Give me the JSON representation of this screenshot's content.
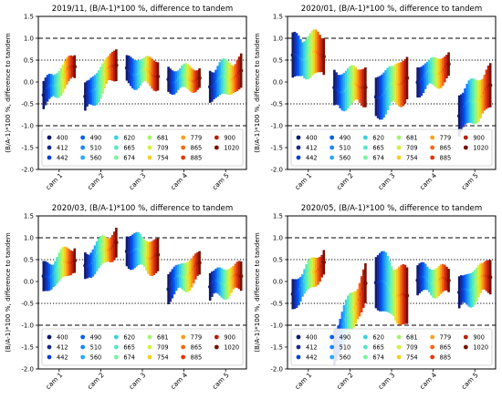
{
  "chart_data": [
    {
      "type": "errorbar",
      "title": "2019/11, (B/A-1)*100 %, difference to tandem",
      "xlabel": "",
      "ylabel": "(B/A-1)*100 %, difference to tandem",
      "ylim": [
        -2.0,
        1.5
      ],
      "yticks": [
        "-2.0",
        "-1.5",
        "-1.0",
        "-0.5",
        "0.0",
        "0.5",
        "1.0",
        "1.5"
      ],
      "categories": [
        "cam 1",
        "cam 2",
        "cam 3",
        "cam 4",
        "cam 5"
      ],
      "reference_lines": {
        "dashed": [
          1.0,
          -1.0
        ],
        "dotted": [
          0.5,
          -0.5
        ]
      },
      "groups": [
        {
          "start": -0.3,
          "end": 0.35,
          "sd": 0.28
        },
        {
          "start": -0.4,
          "end": 0.45,
          "sd": 0.32
        },
        {
          "start": 0.25,
          "end": 0.2,
          "sd": 0.3
        },
        {
          "start": 0.05,
          "end": 0.1,
          "sd": 0.25
        },
        {
          "start": -0.05,
          "end": 0.2,
          "sd": 0.35
        }
      ]
    },
    {
      "type": "errorbar",
      "title": "2020/01, (B/A-1)*100 %, difference to tandem",
      "xlabel": "",
      "ylabel": "(B/A-1)*100 %, difference to tandem",
      "ylim": [
        -2.0,
        1.5
      ],
      "yticks": [
        "-2.0",
        "-1.5",
        "-1.0",
        "-0.5",
        "0.0",
        "0.5",
        "1.0",
        "1.5"
      ],
      "categories": [
        "cam 1",
        "cam 2",
        "cam 3",
        "cam 4",
        "cam 5"
      ],
      "reference_lines": {
        "dashed": [
          1.0,
          -1.0
        ],
        "dotted": [
          0.5,
          -0.5
        ]
      },
      "groups": [
        {
          "start": 0.55,
          "end": 0.65,
          "sd": 0.45
        },
        {
          "start": -0.2,
          "end": -0.05,
          "sd": 0.4
        },
        {
          "start": -0.35,
          "end": 0.1,
          "sd": 0.45
        },
        {
          "start": 0.05,
          "end": 0.35,
          "sd": 0.3
        },
        {
          "start": -0.7,
          "end": -0.15,
          "sd": 0.45
        }
      ]
    },
    {
      "type": "errorbar",
      "title": "2020/03, (B/A-1)*100 %, difference to tandem",
      "xlabel": "",
      "ylabel": "(B/A-1)*100 %, difference to tandem",
      "ylim": [
        -2.0,
        1.5
      ],
      "yticks": [
        "-2.0",
        "-1.5",
        "-1.0",
        "-0.5",
        "0.0",
        "0.5",
        "1.0",
        "1.5"
      ],
      "categories": [
        "cam 1",
        "cam 2",
        "cam 3",
        "cam 4",
        "cam 5"
      ],
      "reference_lines": {
        "dashed": [
          1.0,
          -1.0
        ],
        "dotted": [
          0.5,
          -0.5
        ]
      },
      "groups": [
        {
          "start": 0.05,
          "end": 0.55,
          "sd": 0.3
        },
        {
          "start": 0.35,
          "end": 0.9,
          "sd": 0.3
        },
        {
          "start": 0.75,
          "end": 0.55,
          "sd": 0.35
        },
        {
          "start": -0.1,
          "end": 0.35,
          "sd": 0.3
        },
        {
          "start": -0.1,
          "end": 0.1,
          "sd": 0.3
        }
      ]
    },
    {
      "type": "errorbar",
      "title": "2020/05, (B/A-1)*100 %, difference to tandem",
      "xlabel": "",
      "ylabel": "(B/A-1)*100 %, difference to tandem",
      "ylim": [
        -2.0,
        1.5
      ],
      "yticks": [
        "-2.0",
        "-1.5",
        "-1.0",
        "-0.5",
        "0.0",
        "0.5",
        "1.0",
        "1.5"
      ],
      "categories": [
        "cam 1",
        "cam 2",
        "cam 3",
        "cam 4",
        "cam 5"
      ],
      "reference_lines": {
        "dashed": [
          1.0,
          -1.0
        ],
        "dotted": [
          0.5,
          -0.5
        ]
      },
      "groups": [
        {
          "start": -0.3,
          "end": 0.45,
          "sd": 0.3
        },
        {
          "start": -1.45,
          "end": -0.1,
          "sd": 0.4
        },
        {
          "start": 0.05,
          "end": -0.4,
          "sd": 0.6
        },
        {
          "start": 0.05,
          "end": 0.0,
          "sd": 0.3
        },
        {
          "start": -0.3,
          "end": 0.15,
          "sd": 0.35
        }
      ]
    }
  ],
  "legend": {
    "placement": "lower inside",
    "entries": [
      "400",
      "412",
      "442",
      "490",
      "510",
      "560",
      "620",
      "665",
      "674",
      "681",
      "709",
      "754",
      "779",
      "865",
      "885",
      "900",
      "1020"
    ],
    "colors": [
      "#0d1a6b",
      "#1a2a8f",
      "#0a3fd8",
      "#005ef5",
      "#1a86ff",
      "#27aaf8",
      "#3bd0e0",
      "#52e8c2",
      "#78f59e",
      "#a6f470",
      "#d6f03f",
      "#f4d020",
      "#ffa020",
      "#f46a16",
      "#e03a10",
      "#b8200a",
      "#7a1000"
    ]
  }
}
